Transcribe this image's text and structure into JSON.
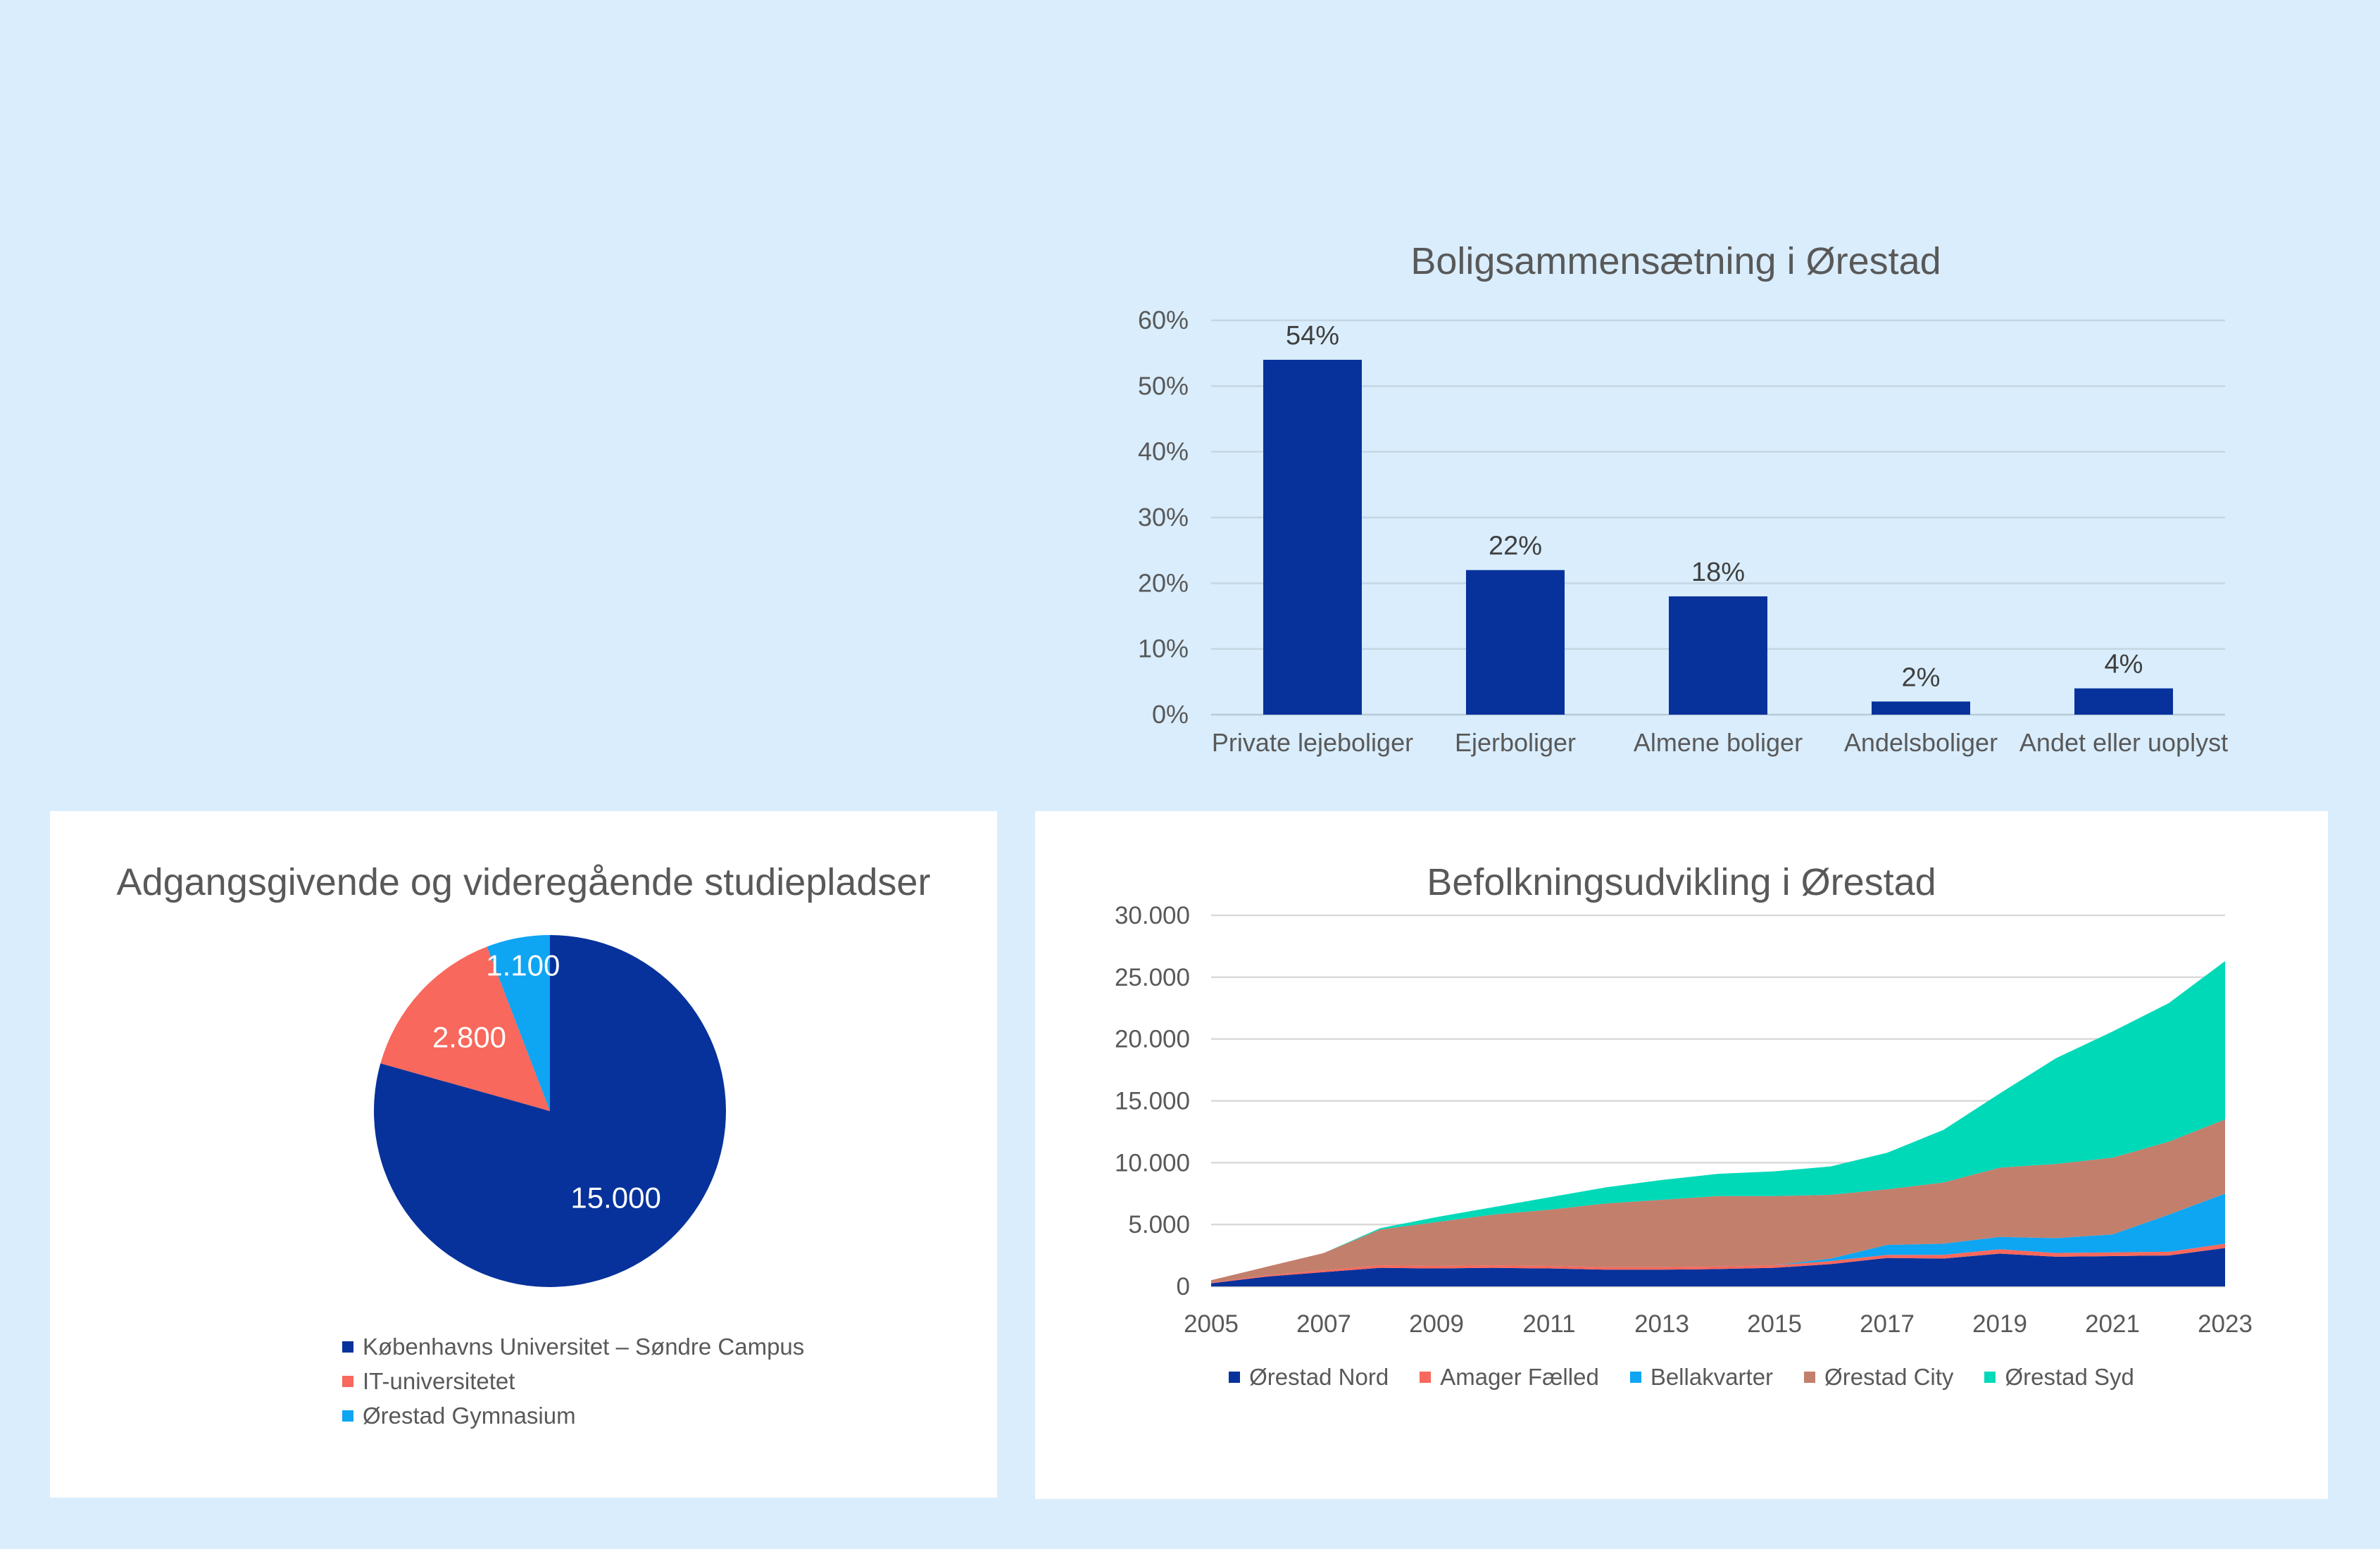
{
  "page": {
    "background": "#D9EDFC",
    "card_background": "#FFFFFF"
  },
  "colors": {
    "navy": "#07329B",
    "salmon": "#F8685C",
    "lightblue": "#0EA5F3",
    "brown": "#C27F6C",
    "teal": "#00D9B8",
    "title_gray": "#595959",
    "tick_gray": "#595959",
    "value_label_gray": "#3F3F3F",
    "grid_on_blue": "#C6D6E2",
    "grid_on_white": "#D9D9D9",
    "axis_line": "#BFBFBF",
    "pie_label_white": "#FFFFFF"
  },
  "chart_data": [
    {
      "type": "bar",
      "title": "Boligsammensætning i Ørestad",
      "categories": [
        "Private lejeboliger",
        "Ejerboliger",
        "Almene boliger",
        "Andelsboliger",
        "Andet eller uoplyst"
      ],
      "values": [
        54,
        22,
        18,
        2,
        4
      ],
      "value_labels": [
        "54%",
        "22%",
        "18%",
        "2%",
        "4%"
      ],
      "ylim": [
        0,
        60
      ],
      "y_tick_values": [
        0,
        10,
        20,
        30,
        40,
        50,
        60
      ],
      "y_tick_labels": [
        "0%",
        "10%",
        "20%",
        "30%",
        "40%",
        "50%",
        "60%"
      ],
      "grid": "horizontal",
      "bar_color_key": "navy",
      "legend_position": "none"
    },
    {
      "type": "pie",
      "title": "Adgangsgivende og videregående studiepladser",
      "slices": [
        {
          "label": "Københavns Universitet – Søndre Campus",
          "value": 15000,
          "display": "15.000",
          "color_key": "navy",
          "label_radius": 0.62
        },
        {
          "label": "IT-universitetet",
          "value": 2800,
          "display": "2.800",
          "color_key": "salmon",
          "label_radius": 0.62
        },
        {
          "label": "Ørestad Gymnasium",
          "value": 1100,
          "display": "1.100",
          "color_key": "lightblue",
          "label_radius": 0.84
        }
      ],
      "start_angle_deg": 0,
      "direction": "clockwise",
      "legend_position": "bottom-left"
    },
    {
      "type": "area",
      "title": "Befolkningsudvikling i Ørestad",
      "stacked": true,
      "x": [
        2005,
        2006,
        2007,
        2008,
        2009,
        2010,
        2011,
        2012,
        2013,
        2014,
        2015,
        2016,
        2017,
        2018,
        2019,
        2020,
        2021,
        2022,
        2023
      ],
      "x_tick_labels": [
        "2005",
        "2007",
        "2009",
        "2011",
        "2013",
        "2015",
        "2017",
        "2019",
        "2021",
        "2023"
      ],
      "ylim": [
        0,
        30000
      ],
      "y_tick_values": [
        0,
        5000,
        10000,
        15000,
        20000,
        25000,
        30000
      ],
      "y_tick_labels": [
        "0",
        "5.000",
        "10.000",
        "15.000",
        "20.000",
        "25.000",
        "30.000"
      ],
      "grid": "horizontal",
      "series": [
        {
          "name": "Ørestad Nord",
          "color_key": "navy",
          "values": [
            250,
            800,
            1150,
            1500,
            1450,
            1500,
            1450,
            1350,
            1350,
            1400,
            1500,
            1800,
            2300,
            2250,
            2650,
            2400,
            2450,
            2500,
            3100
          ]
        },
        {
          "name": "Amager Fælled",
          "color_key": "salmon",
          "values": [
            50,
            100,
            150,
            200,
            200,
            200,
            200,
            200,
            200,
            200,
            200,
            250,
            250,
            300,
            350,
            300,
            300,
            300,
            350
          ]
        },
        {
          "name": "Bellakvarter",
          "color_key": "lightblue",
          "values": [
            0,
            0,
            0,
            0,
            0,
            0,
            0,
            0,
            0,
            0,
            0,
            200,
            800,
            900,
            1000,
            1200,
            1450,
            3000,
            4050
          ]
        },
        {
          "name": "Ørestad City",
          "color_key": "brown",
          "values": [
            200,
            700,
            1400,
            2900,
            3550,
            4100,
            4550,
            5150,
            5450,
            5700,
            5600,
            5150,
            4500,
            4950,
            5600,
            6000,
            6200,
            5900,
            6000
          ]
        },
        {
          "name": "Ørestad Syd",
          "color_key": "teal",
          "values": [
            0,
            0,
            0,
            100,
            400,
            600,
            1000,
            1300,
            1600,
            1800,
            2000,
            2300,
            2950,
            4250,
            6000,
            8550,
            10200,
            11200,
            12800
          ]
        }
      ],
      "legend_position": "bottom"
    }
  ]
}
